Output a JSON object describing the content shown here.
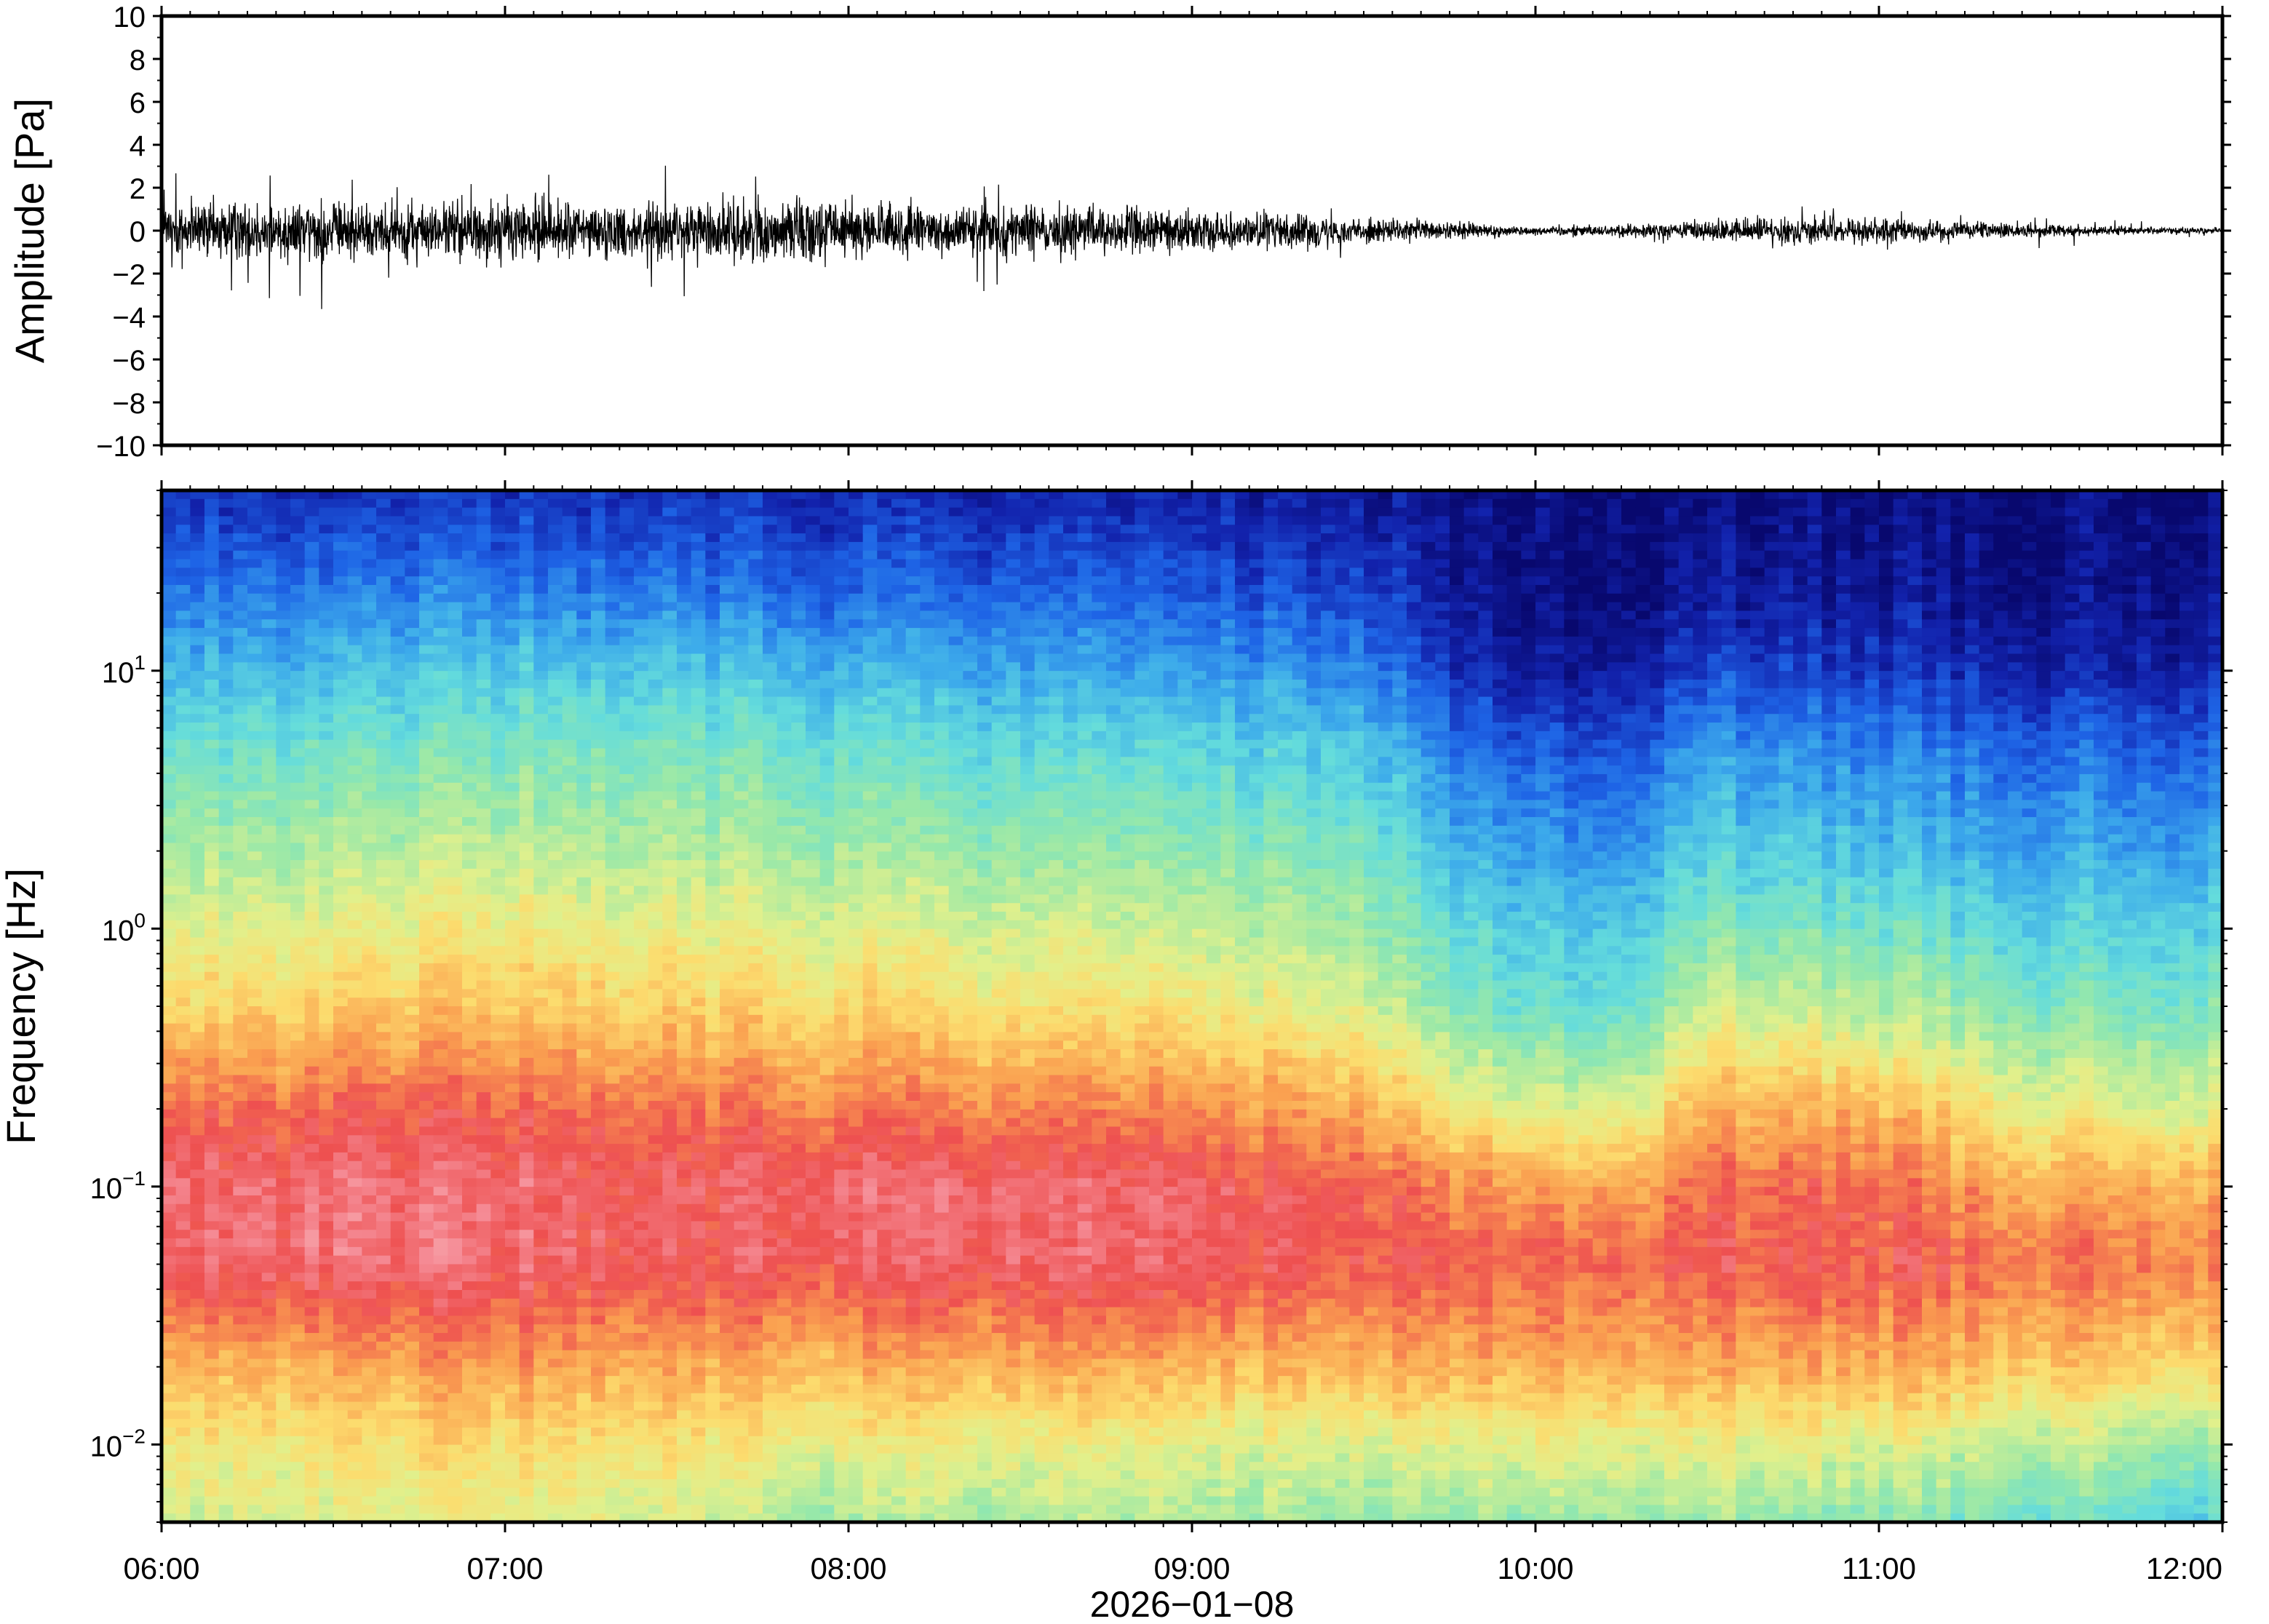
{
  "chart_data": [
    {
      "type": "line",
      "panel": "waveform",
      "title": "",
      "ylabel": "Amplitude [Pa]",
      "xlabel": "",
      "ylim": [
        -10,
        10
      ],
      "yticks": [
        -10,
        -8,
        -6,
        -4,
        -2,
        0,
        2,
        4,
        6,
        8,
        10
      ],
      "ytick_labels": [
        "−10",
        "−8",
        "−6",
        "−4",
        "−2",
        "0",
        "2",
        "4",
        "6",
        "8",
        "10"
      ],
      "xlim": [
        "06:00",
        "12:00"
      ],
      "grid": false,
      "series": [
        {
          "color": "#000000",
          "envelope": {
            "x": [
              "06:00",
              "06:15",
              "06:30",
              "06:45",
              "07:00",
              "07:15",
              "07:30",
              "07:45",
              "08:00",
              "08:15",
              "08:30",
              "08:45",
              "09:00",
              "09:15",
              "09:30",
              "09:45",
              "10:00",
              "10:15",
              "10:30",
              "10:45",
              "11:00",
              "11:15",
              "11:30",
              "11:45",
              "12:00"
            ],
            "typical_amplitude": [
              1.0,
              1.0,
              1.0,
              0.8,
              1.1,
              0.9,
              0.9,
              1.1,
              0.9,
              0.8,
              0.8,
              0.8,
              0.6,
              0.6,
              0.4,
              0.3,
              0.15,
              0.2,
              0.3,
              0.45,
              0.4,
              0.3,
              0.2,
              0.12,
              0.08
            ],
            "peak_max": [
              2.8,
              3.0,
              2.6,
              2.5,
              2.8,
              2.5,
              3.3,
              2.7,
              2.0,
              1.8,
              2.3,
              2.0,
              1.0,
              1.6,
              0.8,
              0.5,
              0.3,
              0.3,
              0.8,
              1.2,
              1.0,
              0.8,
              0.6,
              0.6,
              0.2
            ],
            "peak_min": [
              -3.0,
              -3.5,
              -3.7,
              -2.5,
              -3.0,
              -2.5,
              -3.2,
              -2.5,
              -2.0,
              -4.3,
              -2.0,
              -1.8,
              -1.4,
              -2.4,
              -1.0,
              -0.6,
              -0.3,
              -0.4,
              -0.9,
              -1.2,
              -1.3,
              -0.8,
              -1.0,
              -0.5,
              -0.2
            ]
          }
        }
      ]
    },
    {
      "type": "heatmap",
      "panel": "spectrogram",
      "title": "",
      "ylabel": "Frequency [Hz]",
      "xlabel": "2026−01−08",
      "yscale": "log",
      "ylim": [
        0.005,
        50
      ],
      "yticks": [
        0.01,
        0.1,
        1,
        10
      ],
      "ytick_labels": [
        {
          "base": "10",
          "exp": "−2"
        },
        {
          "base": "10",
          "exp": "−1"
        },
        {
          "base": "10",
          "exp": "0"
        },
        {
          "base": "10",
          "exp": "1"
        }
      ],
      "x": [
        "06:00",
        "07:00",
        "08:00",
        "09:00",
        "10:00",
        "11:00",
        "12:00"
      ],
      "xtick_labels": [
        "06:00",
        "07:00",
        "08:00",
        "09:00",
        "10:00",
        "11:00",
        "12:00"
      ],
      "xlim": [
        "06:00",
        "12:00"
      ],
      "colormap": "spectral",
      "colorbar": false,
      "grid": false,
      "power_profile": {
        "freq": [
          0.005,
          0.01,
          0.02,
          0.05,
          0.1,
          0.2,
          0.5,
          1,
          2,
          5,
          10,
          20,
          50
        ],
        "time": [
          "06:00",
          "06:30",
          "07:00",
          "07:30",
          "08:00",
          "08:30",
          "09:00",
          "09:30",
          "09:45",
          "10:00",
          "10:15",
          "10:30",
          "11:00",
          "11:30",
          "12:00"
        ],
        "relative_level": [
          [
            0.55,
            0.62,
            0.72,
            0.88,
            0.9,
            0.82,
            0.66,
            0.58,
            0.5,
            0.4,
            0.3,
            0.2,
            0.1
          ],
          [
            0.58,
            0.64,
            0.74,
            0.92,
            0.92,
            0.84,
            0.68,
            0.6,
            0.52,
            0.42,
            0.32,
            0.22,
            0.1
          ],
          [
            0.6,
            0.66,
            0.76,
            0.9,
            0.9,
            0.84,
            0.7,
            0.62,
            0.54,
            0.44,
            0.34,
            0.22,
            0.1
          ],
          [
            0.56,
            0.64,
            0.74,
            0.88,
            0.88,
            0.82,
            0.68,
            0.6,
            0.52,
            0.44,
            0.34,
            0.22,
            0.1
          ],
          [
            0.5,
            0.6,
            0.72,
            0.88,
            0.9,
            0.8,
            0.66,
            0.58,
            0.5,
            0.4,
            0.3,
            0.18,
            0.08
          ],
          [
            0.52,
            0.6,
            0.74,
            0.9,
            0.9,
            0.8,
            0.64,
            0.56,
            0.48,
            0.38,
            0.28,
            0.18,
            0.08
          ],
          [
            0.5,
            0.58,
            0.72,
            0.88,
            0.88,
            0.78,
            0.62,
            0.54,
            0.46,
            0.36,
            0.26,
            0.16,
            0.06
          ],
          [
            0.48,
            0.58,
            0.72,
            0.86,
            0.84,
            0.74,
            0.58,
            0.5,
            0.44,
            0.34,
            0.24,
            0.14,
            0.06
          ],
          [
            0.46,
            0.58,
            0.72,
            0.84,
            0.78,
            0.62,
            0.44,
            0.38,
            0.3,
            0.2,
            0.1,
            0.04,
            0.02
          ],
          [
            0.48,
            0.6,
            0.74,
            0.84,
            0.76,
            0.58,
            0.4,
            0.34,
            0.26,
            0.16,
            0.06,
            0.02,
            0.02
          ],
          [
            0.5,
            0.6,
            0.74,
            0.84,
            0.76,
            0.58,
            0.4,
            0.34,
            0.26,
            0.16,
            0.06,
            0.02,
            0.02
          ],
          [
            0.5,
            0.6,
            0.74,
            0.86,
            0.84,
            0.74,
            0.56,
            0.46,
            0.36,
            0.26,
            0.14,
            0.06,
            0.02
          ],
          [
            0.46,
            0.58,
            0.74,
            0.86,
            0.82,
            0.72,
            0.52,
            0.42,
            0.32,
            0.22,
            0.12,
            0.05,
            0.02
          ],
          [
            0.42,
            0.54,
            0.7,
            0.82,
            0.74,
            0.6,
            0.44,
            0.36,
            0.28,
            0.18,
            0.08,
            0.03,
            0.02
          ],
          [
            0.35,
            0.48,
            0.66,
            0.8,
            0.74,
            0.58,
            0.44,
            0.36,
            0.28,
            0.18,
            0.08,
            0.03,
            0.02
          ]
        ]
      }
    }
  ]
}
